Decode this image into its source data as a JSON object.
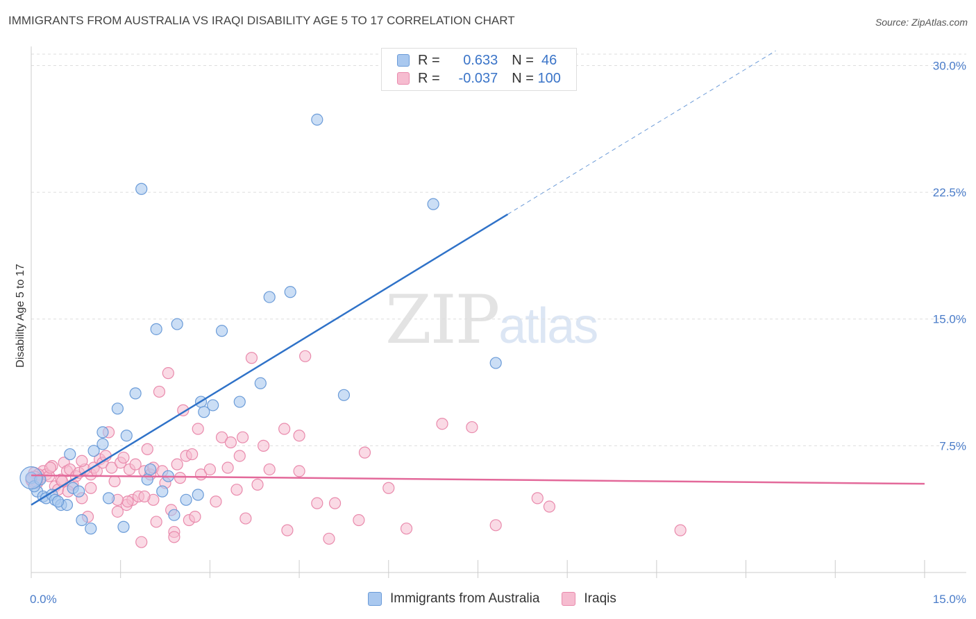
{
  "title": "IMMIGRANTS FROM AUSTRALIA VS IRAQI DISABILITY AGE 5 TO 17 CORRELATION CHART",
  "source": "Source: ZipAtlas.com",
  "watermark": {
    "zip": "ZIP",
    "atlas": "atlas"
  },
  "legend": {
    "rows": [
      {
        "r_label": "R = ",
        "r_value": "0.633",
        "n_label": "N = ",
        "n_value": " 46"
      },
      {
        "r_label": "R = ",
        "r_value": "-0.037",
        "n_label": "N = ",
        "n_value": "100"
      }
    ]
  },
  "bottom_legend": [
    "Immigrants from Australia",
    "Iraqis"
  ],
  "colors": {
    "blue_fill": "#a9c8ef",
    "blue_stroke": "#6a9bd8",
    "blue_line": "#2f72c8",
    "pink_fill": "#f6bcd0",
    "pink_stroke": "#e98aac",
    "pink_line": "#e3699a",
    "grid": "#dddddd",
    "axis_label": "#4a7cc9"
  },
  "chart_data": {
    "type": "scatter",
    "title": "IMMIGRANTS FROM AUSTRALIA VS IRAQI DISABILITY AGE 5 TO 17 CORRELATION CHART",
    "xlabel": "",
    "ylabel": "Disability Age 5 to 17",
    "xlim": [
      0,
      15.7
    ],
    "ylim": [
      0,
      30.8
    ],
    "x_tick_labels": [
      "0.0%",
      "15.0%"
    ],
    "y_ticks": [
      7.5,
      15.0,
      22.5,
      30.0
    ],
    "y_tick_labels": [
      "7.5%",
      "15.0%",
      "22.5%",
      "30.0%"
    ],
    "series": [
      {
        "name": "Immigrants from Australia",
        "r": 0.633,
        "n": 46,
        "points": [
          [
            0.0,
            5.6
          ],
          [
            0.1,
            4.8
          ],
          [
            0.2,
            4.5
          ],
          [
            0.25,
            4.4
          ],
          [
            0.35,
            4.6
          ],
          [
            0.4,
            4.3
          ],
          [
            0.5,
            4.0
          ],
          [
            0.6,
            4.0
          ],
          [
            0.65,
            7.0
          ],
          [
            0.7,
            5.0
          ],
          [
            0.8,
            4.8
          ],
          [
            0.85,
            3.1
          ],
          [
            1.0,
            2.6
          ],
          [
            1.05,
            7.2
          ],
          [
            1.2,
            8.3
          ],
          [
            1.3,
            4.4
          ],
          [
            1.45,
            9.7
          ],
          [
            1.55,
            2.7
          ],
          [
            1.6,
            8.1
          ],
          [
            1.75,
            10.6
          ],
          [
            1.85,
            22.7
          ],
          [
            1.95,
            5.5
          ],
          [
            2.1,
            14.4
          ],
          [
            2.2,
            4.8
          ],
          [
            2.3,
            5.7
          ],
          [
            2.4,
            3.4
          ],
          [
            2.45,
            14.7
          ],
          [
            2.6,
            4.3
          ],
          [
            2.8,
            4.6
          ],
          [
            2.85,
            10.1
          ],
          [
            2.9,
            9.5
          ],
          [
            3.05,
            9.9
          ],
          [
            3.2,
            14.3
          ],
          [
            3.5,
            10.1
          ],
          [
            3.85,
            11.2
          ],
          [
            4.0,
            16.3
          ],
          [
            4.35,
            16.6
          ],
          [
            4.8,
            26.8
          ],
          [
            5.25,
            10.5
          ],
          [
            6.75,
            21.8
          ],
          [
            7.8,
            12.4
          ],
          [
            0.05,
            5.1
          ],
          [
            0.15,
            5.5
          ],
          [
            0.45,
            4.2
          ],
          [
            1.2,
            7.6
          ],
          [
            2.0,
            6.1
          ]
        ]
      },
      {
        "name": "Iraqis",
        "r": -0.037,
        "n": 100,
        "points": [
          [
            0.0,
            5.5
          ],
          [
            0.05,
            5.9
          ],
          [
            0.1,
            5.3
          ],
          [
            0.15,
            5.6
          ],
          [
            0.2,
            6.0
          ],
          [
            0.25,
            5.8
          ],
          [
            0.3,
            5.7
          ],
          [
            0.35,
            6.3
          ],
          [
            0.4,
            5.1
          ],
          [
            0.45,
            4.9
          ],
          [
            0.5,
            5.5
          ],
          [
            0.55,
            6.5
          ],
          [
            0.6,
            6.0
          ],
          [
            0.65,
            6.1
          ],
          [
            0.7,
            5.2
          ],
          [
            0.75,
            5.7
          ],
          [
            0.8,
            5.9
          ],
          [
            0.85,
            4.4
          ],
          [
            0.9,
            6.1
          ],
          [
            0.95,
            3.3
          ],
          [
            1.0,
            5.8
          ],
          [
            1.05,
            6.2
          ],
          [
            1.1,
            6.0
          ],
          [
            1.15,
            6.7
          ],
          [
            1.2,
            6.5
          ],
          [
            1.25,
            6.9
          ],
          [
            1.3,
            8.3
          ],
          [
            1.35,
            6.2
          ],
          [
            1.4,
            5.4
          ],
          [
            1.45,
            3.6
          ],
          [
            1.5,
            6.5
          ],
          [
            1.55,
            6.8
          ],
          [
            1.6,
            4.0
          ],
          [
            1.65,
            6.1
          ],
          [
            1.7,
            4.3
          ],
          [
            1.75,
            6.4
          ],
          [
            1.8,
            4.5
          ],
          [
            1.85,
            1.8
          ],
          [
            1.9,
            6.0
          ],
          [
            1.95,
            7.3
          ],
          [
            2.0,
            5.8
          ],
          [
            2.05,
            6.2
          ],
          [
            2.1,
            3.0
          ],
          [
            2.15,
            10.7
          ],
          [
            2.2,
            6.0
          ],
          [
            2.25,
            5.3
          ],
          [
            2.3,
            11.8
          ],
          [
            2.35,
            3.7
          ],
          [
            2.4,
            2.4
          ],
          [
            2.45,
            6.4
          ],
          [
            2.5,
            5.6
          ],
          [
            2.55,
            9.6
          ],
          [
            2.6,
            6.9
          ],
          [
            2.65,
            3.1
          ],
          [
            2.7,
            7.0
          ],
          [
            2.75,
            3.3
          ],
          [
            2.8,
            8.5
          ],
          [
            2.85,
            5.8
          ],
          [
            3.0,
            6.1
          ],
          [
            3.1,
            4.2
          ],
          [
            3.2,
            8.0
          ],
          [
            3.35,
            7.7
          ],
          [
            3.45,
            4.9
          ],
          [
            3.55,
            8.0
          ],
          [
            3.6,
            3.2
          ],
          [
            3.7,
            12.7
          ],
          [
            3.9,
            7.5
          ],
          [
            4.0,
            6.1
          ],
          [
            4.25,
            8.5
          ],
          [
            4.3,
            2.5
          ],
          [
            4.5,
            8.1
          ],
          [
            4.6,
            12.8
          ],
          [
            4.8,
            4.1
          ],
          [
            5.0,
            2.0
          ],
          [
            5.5,
            3.1
          ],
          [
            5.6,
            7.1
          ],
          [
            6.0,
            5.0
          ],
          [
            6.3,
            2.6
          ],
          [
            6.9,
            8.8
          ],
          [
            7.4,
            8.6
          ],
          [
            7.8,
            2.8
          ],
          [
            8.5,
            4.4
          ],
          [
            8.7,
            3.9
          ],
          [
            10.9,
            2.5
          ],
          [
            0.12,
            5.8
          ],
          [
            0.32,
            6.2
          ],
          [
            0.52,
            5.4
          ],
          [
            1.0,
            5.0
          ],
          [
            1.62,
            4.2
          ],
          [
            2.05,
            4.3
          ],
          [
            2.4,
            2.1
          ],
          [
            3.3,
            6.2
          ],
          [
            3.5,
            6.9
          ],
          [
            3.8,
            5.2
          ],
          [
            4.5,
            6.0
          ],
          [
            5.1,
            4.1
          ],
          [
            0.62,
            4.8
          ],
          [
            0.85,
            6.6
          ],
          [
            1.45,
            4.3
          ],
          [
            1.9,
            4.5
          ]
        ]
      }
    ],
    "trend_lines": [
      {
        "series": "Immigrants from Australia",
        "x_solid": [
          0.0,
          8.0
        ],
        "x_dashed": [
          8.0,
          12.5
        ],
        "y_at_0": 4.0,
        "slope": 2.15
      },
      {
        "series": "Iraqis",
        "x": [
          0.0,
          15.0
        ],
        "y_start": 5.75,
        "y_end": 5.25
      }
    ]
  }
}
